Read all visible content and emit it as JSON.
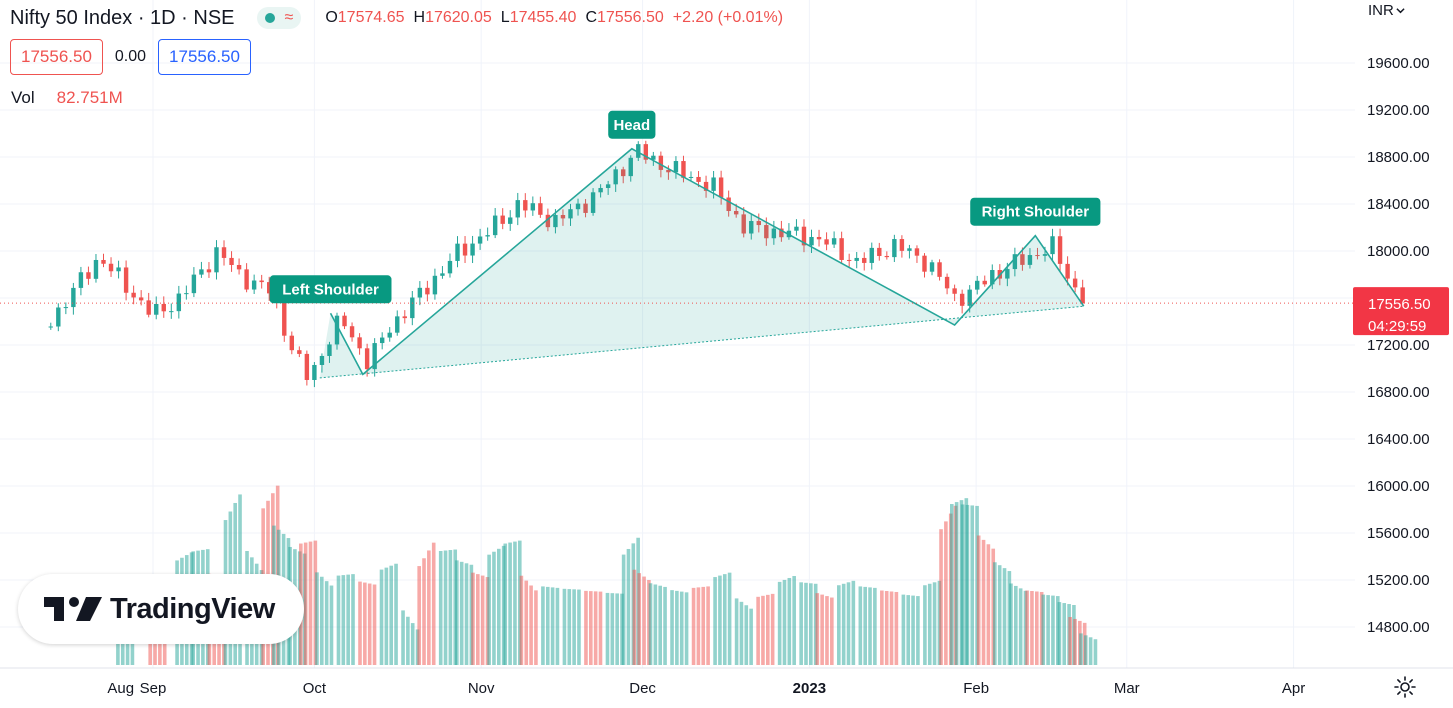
{
  "header": {
    "title": "Nifty 50 Index · 1D · NSE",
    "ohlc": {
      "o_label": "O",
      "o": "17574.65",
      "h_label": "H",
      "h": "17620.05",
      "l_label": "L",
      "l": "17455.40",
      "c_label": "C",
      "c": "17556.50",
      "change": "+2.20 (+0.01%)"
    }
  },
  "price_boxes": {
    "sell": "17556.50",
    "spread": "0.00",
    "buy": "17556.50"
  },
  "volume_legend": {
    "label": "Vol",
    "value": "82.751M"
  },
  "currency_menu": "INR",
  "current_price": {
    "price": "17556.50",
    "countdown": "04:29:59"
  },
  "branding": {
    "logo_text": "TradingView"
  },
  "colors": {
    "up": "#26a69a",
    "down": "#ef5350",
    "pattern_fill": "#26a69a",
    "pattern_line": "#26a69a"
  },
  "icons": {
    "settings": "gear-icon",
    "currency_menu": "chevron-down-icon",
    "status": "market-status-dot-icon"
  },
  "chart_data": {
    "type": "candlestick",
    "y_axis": {
      "min": 14600,
      "max": 19900,
      "ticks": [
        14800,
        15200,
        15600,
        16000,
        16400,
        16800,
        17200,
        17600,
        18000,
        18400,
        18800,
        19200,
        19600
      ]
    },
    "y_tick_labels": [
      "14800.00",
      "15200.00",
      "15600.00",
      "16000.00",
      "16400.00",
      "16800.00",
      "17200.00",
      "17600.00",
      "18000.00",
      "18400.00",
      "18800.00",
      "19200.00",
      "19600.00"
    ],
    "x_axis": {
      "labels": [
        "Aug",
        "Sep",
        "Oct",
        "Nov",
        "Dec",
        "2023",
        "Feb",
        "Mar",
        "Apr"
      ]
    },
    "anchors": [
      {
        "x": "Aug",
        "day": -6
      },
      {
        "x": "Sep",
        "day": 0
      },
      {
        "x": "Oct",
        "day": 30
      },
      {
        "x": "Nov",
        "day": 61
      },
      {
        "x": "Dec",
        "day": 91
      },
      {
        "x": "2023",
        "day": 122
      },
      {
        "x": "Feb",
        "day": 153
      },
      {
        "x": "Mar",
        "day": 181
      },
      {
        "x": "Apr",
        "day": 212
      }
    ],
    "keypoints": [
      {
        "day": -20,
        "close": 17350
      },
      {
        "day": -10,
        "close": 17950
      },
      {
        "day": 0,
        "close": 17450
      },
      {
        "day": 5,
        "close": 17600
      },
      {
        "day": 12,
        "close": 18000
      },
      {
        "day": 16,
        "close": 17800
      },
      {
        "day": 22,
        "close": 17650
      },
      {
        "day": 26,
        "close": 17150
      },
      {
        "day": 29,
        "close": 16900
      },
      {
        "day": 32,
        "close": 17200
      },
      {
        "day": 35,
        "close": 17420
      },
      {
        "day": 40,
        "close": 17050
      },
      {
        "day": 44,
        "close": 17350
      },
      {
        "day": 50,
        "close": 17650
      },
      {
        "day": 57,
        "close": 18000
      },
      {
        "day": 62,
        "close": 18150
      },
      {
        "day": 68,
        "close": 18400
      },
      {
        "day": 75,
        "close": 18250
      },
      {
        "day": 83,
        "close": 18500
      },
      {
        "day": 90,
        "close": 18850
      },
      {
        "day": 96,
        "close": 18700
      },
      {
        "day": 104,
        "close": 18550
      },
      {
        "day": 110,
        "close": 18200
      },
      {
        "day": 118,
        "close": 18150
      },
      {
        "day": 124,
        "close": 18100
      },
      {
        "day": 131,
        "close": 17900
      },
      {
        "day": 138,
        "close": 18050
      },
      {
        "day": 144,
        "close": 17900
      },
      {
        "day": 149,
        "close": 17600
      },
      {
        "day": 152,
        "close": 17650
      },
      {
        "day": 156,
        "close": 17800
      },
      {
        "day": 163,
        "close": 17950
      },
      {
        "day": 167,
        "close": 18050
      },
      {
        "day": 171,
        "close": 17700
      },
      {
        "day": 174,
        "close": 17556.5
      }
    ],
    "volume_bars": [
      {
        "day": -5,
        "vol": 44
      },
      {
        "day": 1,
        "vol": 42
      },
      {
        "day": 6,
        "vol": 53
      },
      {
        "day": 9,
        "vol": 56
      },
      {
        "day": 12,
        "vol": 42
      },
      {
        "day": 15,
        "vol": 77
      },
      {
        "day": 19,
        "vol": 51
      },
      {
        "day": 22,
        "vol": 82
      },
      {
        "day": 24,
        "vol": 65
      },
      {
        "day": 27,
        "vol": 56
      },
      {
        "day": 29,
        "vol": 60
      },
      {
        "day": 32,
        "vol": 42
      },
      {
        "day": 36,
        "vol": 44
      },
      {
        "day": 40,
        "vol": 40
      },
      {
        "day": 44,
        "vol": 48
      },
      {
        "day": 48,
        "vol": 22
      },
      {
        "day": 51,
        "vol": 54
      },
      {
        "day": 55,
        "vol": 56
      },
      {
        "day": 58,
        "vol": 50
      },
      {
        "day": 61,
        "vol": 44
      },
      {
        "day": 64,
        "vol": 56
      },
      {
        "day": 67,
        "vol": 60
      },
      {
        "day": 70,
        "vol": 40
      },
      {
        "day": 74,
        "vol": 38
      },
      {
        "day": 78,
        "vol": 37
      },
      {
        "day": 82,
        "vol": 36
      },
      {
        "day": 86,
        "vol": 35
      },
      {
        "day": 89,
        "vol": 58
      },
      {
        "day": 91,
        "vol": 44
      },
      {
        "day": 94,
        "vol": 39
      },
      {
        "day": 98,
        "vol": 36
      },
      {
        "day": 102,
        "vol": 38
      },
      {
        "day": 106,
        "vol": 44
      },
      {
        "day": 110,
        "vol": 30
      },
      {
        "day": 114,
        "vol": 34
      },
      {
        "day": 118,
        "vol": 42
      },
      {
        "day": 122,
        "vol": 40
      },
      {
        "day": 125,
        "vol": 34
      },
      {
        "day": 129,
        "vol": 40
      },
      {
        "day": 133,
        "vol": 38
      },
      {
        "day": 137,
        "vol": 36
      },
      {
        "day": 141,
        "vol": 34
      },
      {
        "day": 145,
        "vol": 40
      },
      {
        "day": 148,
        "vol": 72
      },
      {
        "day": 150,
        "vol": 80
      },
      {
        "day": 152,
        "vol": 78
      },
      {
        "day": 155,
        "vol": 60
      },
      {
        "day": 158,
        "vol": 48
      },
      {
        "day": 161,
        "vol": 38
      },
      {
        "day": 164,
        "vol": 36
      },
      {
        "day": 167,
        "vol": 34
      },
      {
        "day": 170,
        "vol": 30
      },
      {
        "day": 172,
        "vol": 22
      },
      {
        "day": 174,
        "vol": 14
      }
    ],
    "annotations": [
      {
        "text": "Left Shoulder",
        "day": 33,
        "price": 17470
      },
      {
        "text": "Head",
        "day": 89,
        "price": 18870
      },
      {
        "text": "Right Shoulder",
        "day": 164,
        "price": 18130
      }
    ],
    "pattern": {
      "outline": [
        {
          "day": 31,
          "price": 16920
        },
        {
          "day": 33,
          "price": 17470
        },
        {
          "day": 39,
          "price": 16950
        },
        {
          "day": 89,
          "price": 18870
        },
        {
          "day": 149,
          "price": 17370
        },
        {
          "day": 164,
          "price": 18130
        },
        {
          "day": 173,
          "price": 17530
        }
      ],
      "neckline": [
        {
          "day": 31,
          "price": 16920
        },
        {
          "day": 173,
          "price": 17530
        }
      ]
    },
    "last_price": 17556.5
  }
}
